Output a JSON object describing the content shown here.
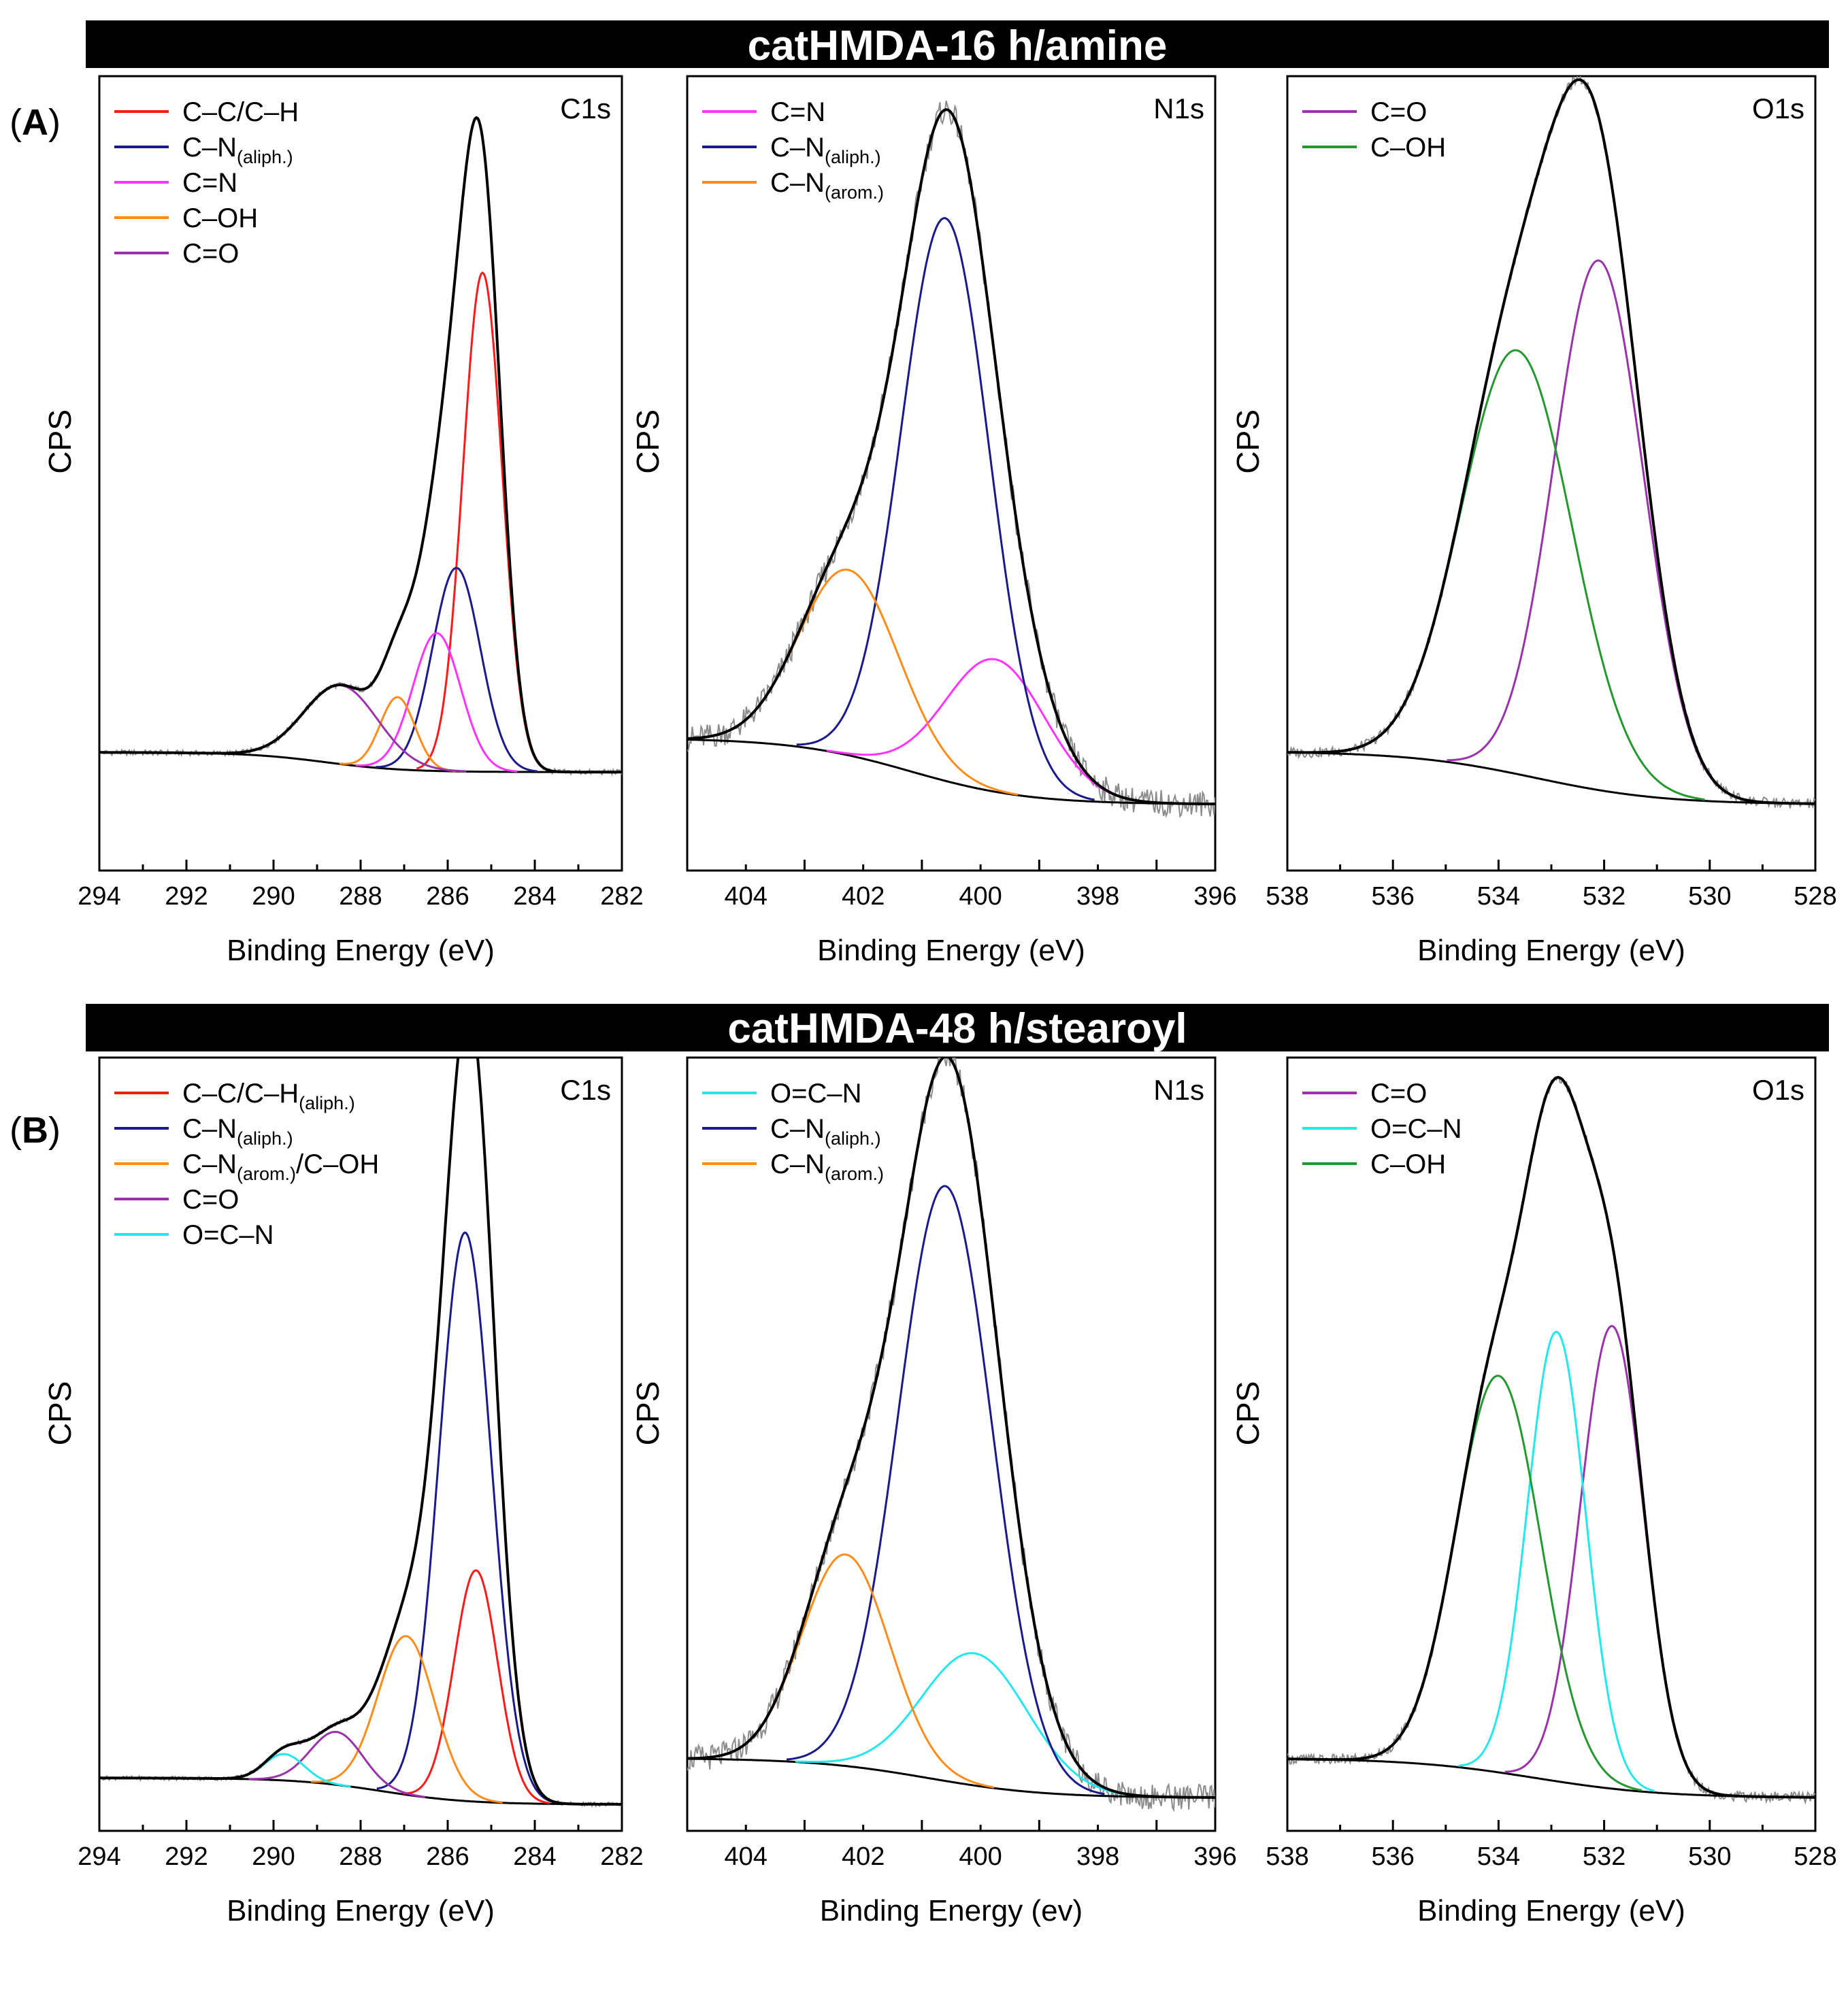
{
  "sections": [
    {
      "title": "catHMDA-16 h/amine",
      "letter": "A"
    },
    {
      "title": "catHMDA-48 h/stearoyl",
      "letter": "B"
    }
  ],
  "colors": {
    "red": "#ff1a1a",
    "navy": "#1a1a8c",
    "magenta": "#ff33ff",
    "orange": "#ff8c1a",
    "purple": "#9933aa",
    "cyan": "#22e8ee",
    "green": "#22992e",
    "black": "#000000",
    "gray": "#8c8c8c"
  },
  "chart_data": [
    {
      "type": "line",
      "panel": "A",
      "label": "C1s",
      "title": "C1s",
      "xlabel": "Binding Energy (eV)",
      "ylabel": "CPS",
      "xlim": [
        294,
        282
      ],
      "ylim": [
        -0.18,
        1.03
      ],
      "xticks": [
        "294",
        "292",
        "290",
        "288",
        "286",
        "284",
        "282"
      ],
      "background": {
        "left": 0.0,
        "right": -0.03,
        "center": 288.8,
        "width": 0.9
      },
      "peaks": [
        {
          "name": "C–C/C–H",
          "sub": "",
          "color": "red",
          "center": 285.2,
          "height": 0.76,
          "width": 0.45
        },
        {
          "name": "C–N",
          "sub": "(aliph.)",
          "color": "navy",
          "center": 285.8,
          "height": 0.31,
          "width": 0.55
        },
        {
          "name": "C=N",
          "sub": "",
          "color": "magenta",
          "center": 286.25,
          "height": 0.21,
          "width": 0.55
        },
        {
          "name": "C–OH",
          "sub": "",
          "color": "orange",
          "center": 287.15,
          "height": 0.11,
          "width": 0.4
        },
        {
          "name": "C=O",
          "sub": "",
          "color": "purple",
          "center": 288.45,
          "height": 0.12,
          "width": 0.85
        }
      ],
      "noise": 0.004
    },
    {
      "type": "line",
      "panel": "A",
      "label": "N1s",
      "title": "N1s",
      "xlabel": "Binding Energy (eV)",
      "ylabel": "CPS",
      "xlim": [
        405,
        396
      ],
      "ylim": [
        -0.1,
        1.1
      ],
      "xticks": [
        "404",
        "402",
        "400",
        "398",
        "396"
      ],
      "background": {
        "left": 0.1,
        "right": 0.0,
        "center": 401.2,
        "width": 1.0
      },
      "peaks": [
        {
          "name": "C=N",
          "sub": "",
          "color": "magenta",
          "center": 399.75,
          "height": 0.2,
          "width": 0.85
        },
        {
          "name": "C–N",
          "sub": "(aliph.)",
          "color": "navy",
          "center": 400.6,
          "height": 0.85,
          "width": 0.75
        },
        {
          "name": "C–N",
          "sub": "(arom.)",
          "color": "orange",
          "center": 402.25,
          "height": 0.28,
          "width": 0.85
        }
      ],
      "noise": 0.02
    },
    {
      "type": "line",
      "panel": "A",
      "label": "O1s",
      "title": "O1s",
      "xlabel": "Binding Energy (eV)",
      "ylabel": "CPS",
      "xlim": [
        538,
        528
      ],
      "ylim": [
        -0.1,
        1.1
      ],
      "xticks": [
        "538",
        "536",
        "534",
        "532",
        "530",
        "528"
      ],
      "background": {
        "left": 0.08,
        "right": 0.0,
        "center": 533.3,
        "width": 1.2
      },
      "peaks": [
        {
          "name": "C=O",
          "sub": "",
          "color": "purple",
          "center": 532.1,
          "height": 0.8,
          "width": 0.85
        },
        {
          "name": "C–OH",
          "sub": "",
          "color": "green",
          "center": 533.65,
          "height": 0.64,
          "width": 1.05
        }
      ],
      "noise": 0.008
    },
    {
      "type": "line",
      "panel": "B",
      "label": "C1s",
      "title": "C1s",
      "xlabel": "Binding Energy (eV)",
      "ylabel": "CPS",
      "xlim": [
        294,
        282
      ],
      "ylim": [
        -0.05,
        1.12
      ],
      "xticks": [
        "294",
        "292",
        "290",
        "288",
        "286",
        "284",
        "282"
      ],
      "background": {
        "left": 0.03,
        "right": -0.01,
        "center": 287.5,
        "width": 1.0
      },
      "peaks": [
        {
          "name": "C–C/C–H",
          "sub": "(aliph.)",
          "color": "red",
          "center": 285.35,
          "height": 0.35,
          "width": 0.5
        },
        {
          "name": "C–N",
          "sub": "(aliph.)",
          "color": "navy",
          "center": 285.6,
          "height": 0.86,
          "width": 0.6
        },
        {
          "name": "C–N",
          "sub": "(arom.)",
          "sub2": "/C–OH",
          "color": "orange",
          "center": 286.95,
          "height": 0.24,
          "width": 0.65
        },
        {
          "name": "C=O",
          "sub": "",
          "color": "purple",
          "center": 288.55,
          "height": 0.08,
          "width": 0.6
        },
        {
          "name": "O=C–N",
          "sub": "",
          "color": "cyan",
          "center": 289.75,
          "height": 0.04,
          "width": 0.45
        }
      ],
      "noise": 0.003
    },
    {
      "type": "line",
      "panel": "B",
      "label": "N1s",
      "title": "N1s",
      "xlabel": "Binding Energy (ev)",
      "ylabel": "CPS",
      "xlim": [
        405,
        396
      ],
      "ylim": [
        -0.05,
        1.12
      ],
      "xticks": [
        "404",
        "402",
        "400",
        "398",
        "396"
      ],
      "background": {
        "left": 0.06,
        "right": 0.0,
        "center": 400.9,
        "width": 1.0
      },
      "peaks": [
        {
          "name": "O=C–N",
          "sub": "",
          "color": "cyan",
          "center": 400.1,
          "height": 0.2,
          "width": 0.9
        },
        {
          "name": "C–N",
          "sub": "(aliph.)",
          "color": "navy",
          "center": 400.6,
          "height": 0.9,
          "width": 0.8
        },
        {
          "name": "C–N",
          "sub": "(arom.)",
          "color": "orange",
          "center": 402.3,
          "height": 0.32,
          "width": 0.75
        }
      ],
      "noise": 0.02
    },
    {
      "type": "line",
      "panel": "B",
      "label": "O1s",
      "title": "O1s",
      "xlabel": "Binding Energy (eV)",
      "ylabel": "CPS",
      "xlim": [
        538,
        528
      ],
      "ylim": [
        -0.05,
        1.12
      ],
      "xticks": [
        "538",
        "536",
        "534",
        "532",
        "530",
        "528"
      ],
      "background": {
        "left": 0.06,
        "right": 0.0,
        "center": 533.3,
        "width": 1.2
      },
      "peaks": [
        {
          "name": "C=O",
          "sub": "",
          "color": "purple",
          "center": 531.85,
          "height": 0.7,
          "width": 0.6
        },
        {
          "name": "O=C–N",
          "sub": "",
          "color": "cyan",
          "center": 532.9,
          "height": 0.68,
          "width": 0.55
        },
        {
          "name": "C–OH",
          "sub": "",
          "color": "green",
          "center": 534.0,
          "height": 0.6,
          "width": 0.8
        }
      ],
      "noise": 0.008
    }
  ]
}
